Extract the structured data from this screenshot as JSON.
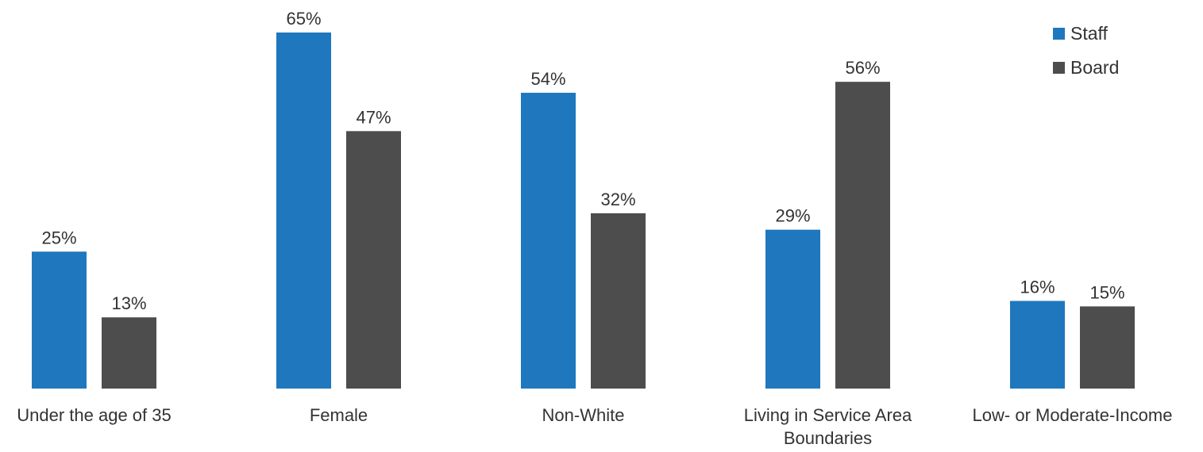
{
  "chart_data": {
    "type": "bar",
    "categories": [
      [
        "Under the age of 35"
      ],
      [
        "Female"
      ],
      [
        "Non-White"
      ],
      [
        "Living in Service Area",
        "Boundaries"
      ],
      [
        "Low- or Moderate-Income"
      ]
    ],
    "series": [
      {
        "name": "Staff",
        "color": "#1f77bd",
        "values": [
          25,
          65,
          54,
          29,
          16
        ],
        "labels": [
          "25%",
          "65%",
          "54%",
          "29%",
          "16%"
        ]
      },
      {
        "name": "Board",
        "color": "#4d4d4d",
        "values": [
          13,
          47,
          32,
          56,
          15
        ],
        "labels": [
          "13%",
          "47%",
          "32%",
          "56%",
          "15%"
        ]
      }
    ],
    "ylim": [
      0,
      65
    ],
    "grid": false,
    "legend_position": "top-right",
    "title": "",
    "xlabel": "",
    "ylabel": ""
  }
}
